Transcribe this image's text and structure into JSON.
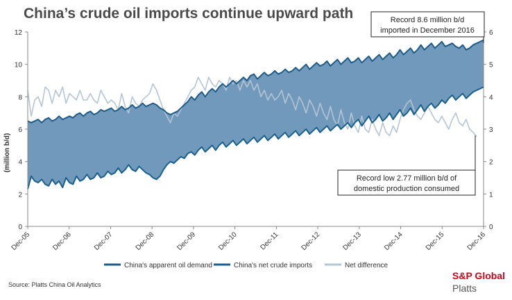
{
  "title": "China’s crude oil imports continue upward path",
  "source": "Source: Platts China Oil Analytics",
  "brand": {
    "line1": "S&P Global",
    "line2": "Platts"
  },
  "colors": {
    "band": "#7199bb",
    "demand": "#1d5a87",
    "imports": "#175f8c",
    "net": "#b4c5d3"
  },
  "chart_data": {
    "type": "area",
    "ylabel": "(million b/d)",
    "ylim": [
      0,
      12
    ],
    "yticks": [
      0,
      2,
      4,
      6,
      8,
      10,
      12
    ],
    "y2lim": [
      0,
      6
    ],
    "y2ticks": [
      0,
      1,
      2,
      3,
      4,
      5,
      6
    ],
    "xtick_labels": [
      "Dec-05",
      "Dec-06",
      "Dec-07",
      "Dec-08",
      "Dec-09",
      "Dec-10",
      "Dec-11",
      "Dec-12",
      "Dec-13",
      "Dec-14",
      "Dec-15",
      "Dec-16"
    ],
    "x_start": "Dec-05",
    "x_end": "Dec-16",
    "annotations": [
      "Record 8.6 million b/d imported  in December 2016",
      "Record low 2.77 million b/d of domestic production consumed"
    ],
    "legend_position": "bottom",
    "series": [
      {
        "name": "China's apparent oil demand",
        "axis": "left",
        "values": [
          6.5,
          6.4,
          6.5,
          6.6,
          6.4,
          6.6,
          6.7,
          6.5,
          6.6,
          6.8,
          6.6,
          6.7,
          6.8,
          6.7,
          6.9,
          7.0,
          6.8,
          7.0,
          7.1,
          6.9,
          7.0,
          7.2,
          7.1,
          7.2,
          7.3,
          7.1,
          7.2,
          7.4,
          7.2,
          7.3,
          7.5,
          7.3,
          7.4,
          7.6,
          7.4,
          7.5,
          7.6,
          7.5,
          7.3,
          7.2,
          7.0,
          6.9,
          7.0,
          7.1,
          7.3,
          7.5,
          7.7,
          8.0,
          7.8,
          8.1,
          8.3,
          8.0,
          8.3,
          8.5,
          8.3,
          8.6,
          8.8,
          8.6,
          8.8,
          9.0,
          8.8,
          9.0,
          9.2,
          9.0,
          9.3,
          9.4,
          9.1,
          9.3,
          9.5,
          9.3,
          9.4,
          9.6,
          9.4,
          9.5,
          9.7,
          9.5,
          9.6,
          9.8,
          9.6,
          9.8,
          10.0,
          9.7,
          9.9,
          10.1,
          9.9,
          10.0,
          10.2,
          9.9,
          10.1,
          10.3,
          10.0,
          10.2,
          10.4,
          10.1,
          10.2,
          10.4,
          10.1,
          10.3,
          10.5,
          10.2,
          10.4,
          10.6,
          10.3,
          10.5,
          10.7,
          10.4,
          10.6,
          10.9,
          10.6,
          10.8,
          11.0,
          10.7,
          10.9,
          11.2,
          10.9,
          11.1,
          11.3,
          11.0,
          11.2,
          11.4,
          11.1,
          11.2,
          11.3,
          11.1,
          11.0,
          11.2,
          10.9,
          11.0,
          11.2,
          11.3,
          11.4,
          11.5
        ]
      },
      {
        "name": "China's net crude imports",
        "axis": "left",
        "values": [
          2.3,
          3.1,
          2.8,
          2.7,
          2.9,
          2.6,
          2.5,
          2.9,
          2.6,
          2.8,
          2.4,
          3.0,
          2.7,
          2.6,
          3.1,
          2.8,
          2.9,
          3.2,
          2.9,
          3.0,
          3.3,
          3.0,
          3.1,
          3.4,
          3.2,
          3.3,
          3.6,
          3.3,
          3.5,
          3.8,
          3.5,
          3.4,
          3.7,
          3.5,
          3.3,
          3.2,
          3.0,
          2.9,
          3.1,
          3.5,
          3.8,
          4.0,
          3.9,
          4.1,
          4.3,
          4.2,
          4.5,
          4.6,
          4.4,
          4.7,
          4.9,
          4.6,
          4.8,
          5.0,
          4.7,
          5.0,
          5.2,
          4.9,
          5.1,
          5.3,
          5.0,
          5.2,
          5.4,
          5.1,
          5.3,
          5.5,
          5.2,
          5.4,
          5.6,
          5.3,
          5.5,
          5.7,
          5.4,
          5.6,
          5.8,
          5.5,
          5.7,
          5.9,
          5.6,
          5.8,
          6.0,
          5.7,
          5.9,
          6.1,
          5.8,
          6.0,
          6.2,
          5.9,
          6.1,
          6.3,
          6.0,
          6.2,
          6.4,
          6.1,
          6.4,
          6.6,
          6.2,
          6.5,
          6.8,
          6.4,
          6.6,
          6.9,
          6.5,
          6.7,
          7.0,
          6.6,
          6.9,
          7.2,
          6.8,
          7.0,
          7.3,
          6.9,
          7.2,
          7.5,
          7.1,
          7.4,
          7.6,
          7.3,
          7.5,
          7.8,
          7.6,
          7.9,
          8.1,
          7.8,
          8.0,
          8.2,
          7.9,
          8.1,
          8.3,
          8.4,
          8.5,
          8.6
        ]
      },
      {
        "name": "Net difference",
        "axis": "right",
        "values": [
          4.2,
          3.4,
          3.9,
          4.0,
          3.7,
          4.3,
          4.2,
          3.8,
          4.2,
          4.0,
          4.3,
          3.8,
          4.1,
          4.0,
          3.9,
          4.2,
          3.9,
          3.9,
          4.1,
          3.9,
          3.8,
          4.2,
          4.0,
          3.8,
          3.9,
          3.8,
          3.6,
          4.1,
          3.7,
          3.5,
          4.0,
          3.8,
          3.7,
          3.9,
          4.0,
          4.1,
          4.4,
          4.2,
          3.9,
          3.6,
          3.4,
          3.2,
          3.5,
          3.4,
          3.6,
          3.8,
          4.0,
          4.2,
          4.3,
          4.6,
          4.4,
          4.2,
          4.6,
          4.4,
          4.3,
          4.5,
          4.4,
          4.2,
          4.6,
          4.4,
          4.5,
          4.2,
          4.5,
          4.3,
          4.5,
          4.2,
          4.4,
          4.0,
          4.2,
          3.9,
          4.1,
          3.9,
          4.0,
          4.2,
          3.8,
          4.1,
          3.9,
          3.6,
          4.0,
          3.8,
          3.5,
          3.9,
          3.7,
          3.4,
          3.8,
          3.5,
          3.3,
          3.7,
          3.3,
          3.1,
          3.6,
          3.2,
          3.0,
          3.5,
          3.1,
          2.9,
          3.4,
          3.0,
          2.9,
          3.3,
          3.0,
          2.8,
          3.2,
          2.9,
          2.8,
          3.1,
          2.9,
          3.3,
          3.6,
          3.8,
          3.9,
          3.6,
          3.4,
          3.3,
          3.5,
          3.7,
          3.5,
          3.3,
          3.2,
          3.4,
          3.2,
          3.0,
          3.3,
          3.5,
          3.2,
          3.1,
          3.3,
          3.0,
          2.9,
          2.77
        ]
      }
    ]
  }
}
